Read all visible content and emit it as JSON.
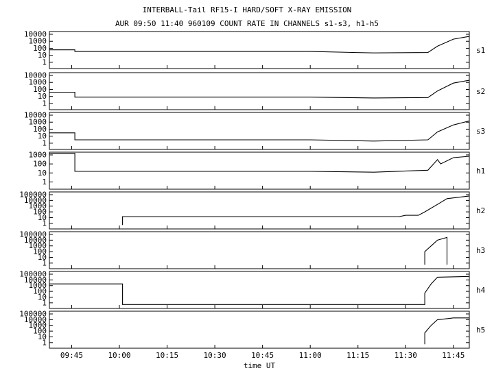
{
  "title_line1": "INTERBALL-Tail RF15-I HARD/SOFT X-RAY EMISSION",
  "title_line2": "AUR 09:50 11:40 960109  COUNT RATE IN CHANNELS s1-s3, h1-h5",
  "xlabel": "time UT",
  "chart_data": {
    "type": "line",
    "y_scale": "log",
    "x_unit": "UT minutes",
    "x_range": [
      "09:38",
      "11:50"
    ],
    "x_ticks": [
      "09:45",
      "10:00",
      "10:15",
      "10:30",
      "10:45",
      "11:00",
      "11:15",
      "11:30",
      "11:45"
    ],
    "panels": [
      {
        "channel": "s1",
        "y_ticks": [
          "10000",
          "1000",
          "100",
          "10",
          "1"
        ],
        "series": [
          {
            "t": "09:38",
            "count_rate": 60
          },
          {
            "t": "09:46",
            "count_rate": 60
          },
          {
            "t": "09:46",
            "count_rate": 35
          },
          {
            "t": "11:00",
            "count_rate": 35
          },
          {
            "t": "11:20",
            "count_rate": 22
          },
          {
            "t": "11:37",
            "count_rate": 25
          },
          {
            "t": "11:40",
            "count_rate": 200
          },
          {
            "t": "11:45",
            "count_rate": 2000
          },
          {
            "t": "11:50",
            "count_rate": 5000
          }
        ]
      },
      {
        "channel": "s2",
        "y_ticks": [
          "10000",
          "1000",
          "100",
          "10",
          "1"
        ],
        "series": [
          {
            "t": "09:38",
            "count_rate": 40
          },
          {
            "t": "09:46",
            "count_rate": 40
          },
          {
            "t": "09:46",
            "count_rate": 8
          },
          {
            "t": "11:00",
            "count_rate": 8
          },
          {
            "t": "11:20",
            "count_rate": 6
          },
          {
            "t": "11:37",
            "count_rate": 7
          },
          {
            "t": "11:40",
            "count_rate": 60
          },
          {
            "t": "11:45",
            "count_rate": 800
          },
          {
            "t": "11:50",
            "count_rate": 2000
          }
        ]
      },
      {
        "channel": "s3",
        "y_ticks": [
          "10000",
          "1000",
          "100",
          "10",
          "1"
        ],
        "series": [
          {
            "t": "09:38",
            "count_rate": 30
          },
          {
            "t": "09:46",
            "count_rate": 30
          },
          {
            "t": "09:46",
            "count_rate": 3
          },
          {
            "t": "11:00",
            "count_rate": 3
          },
          {
            "t": "11:20",
            "count_rate": 2
          },
          {
            "t": "11:37",
            "count_rate": 3
          },
          {
            "t": "11:40",
            "count_rate": 40
          },
          {
            "t": "11:45",
            "count_rate": 400
          },
          {
            "t": "11:50",
            "count_rate": 1500
          }
        ]
      },
      {
        "channel": "h1",
        "y_ticks": [
          "1000",
          "100",
          "10",
          "1"
        ],
        "series": [
          {
            "t": "09:38",
            "count_rate": 1500
          },
          {
            "t": "09:46",
            "count_rate": 1500
          },
          {
            "t": "09:46",
            "count_rate": 15
          },
          {
            "t": "11:00",
            "count_rate": 15
          },
          {
            "t": "11:20",
            "count_rate": 12
          },
          {
            "t": "11:37",
            "count_rate": 20
          },
          {
            "t": "11:40",
            "count_rate": 300
          },
          {
            "t": "11:41",
            "count_rate": 100
          },
          {
            "t": "11:45",
            "count_rate": 500
          },
          {
            "t": "11:50",
            "count_rate": 700
          }
        ]
      },
      {
        "channel": "h2",
        "y_ticks": [
          "100000",
          "10000",
          "1000",
          "100",
          "10",
          "1"
        ],
        "series": [
          {
            "t": "10:01",
            "count_rate": 0.5
          },
          {
            "t": "10:01",
            "count_rate": 15
          },
          {
            "t": "11:28",
            "count_rate": 15
          },
          {
            "t": "11:30",
            "count_rate": 25
          },
          {
            "t": "11:34",
            "count_rate": 25
          },
          {
            "t": "11:36",
            "count_rate": 100
          },
          {
            "t": "11:40",
            "count_rate": 2000
          },
          {
            "t": "11:43",
            "count_rate": 20000
          },
          {
            "t": "11:50",
            "count_rate": 60000
          }
        ]
      },
      {
        "channel": "h3",
        "y_ticks": [
          "100000",
          "10000",
          "1000",
          "100",
          "10",
          "1"
        ],
        "series": [
          {
            "t": "11:36",
            "count_rate": 0.5
          },
          {
            "t": "11:36",
            "count_rate": 100
          },
          {
            "t": "11:38",
            "count_rate": 1000
          },
          {
            "t": "11:40",
            "count_rate": 10000
          },
          {
            "t": "11:43",
            "count_rate": 30000
          },
          {
            "t": "11:43",
            "count_rate": 0.5
          }
        ]
      },
      {
        "channel": "h4",
        "y_ticks": [
          "100000",
          "10000",
          "1000",
          "100",
          "10",
          "1"
        ],
        "series": [
          {
            "t": "09:38",
            "count_rate": 2000
          },
          {
            "t": "10:01",
            "count_rate": 2000
          },
          {
            "t": "10:01",
            "count_rate": 0.5
          },
          {
            "t": "11:36",
            "count_rate": 0.5
          },
          {
            "t": "11:36",
            "count_rate": 50
          },
          {
            "t": "11:38",
            "count_rate": 2000
          },
          {
            "t": "11:40",
            "count_rate": 30000
          },
          {
            "t": "11:50",
            "count_rate": 40000
          }
        ]
      },
      {
        "channel": "h5",
        "y_ticks": [
          "100000",
          "10000",
          "1000",
          "100",
          "10",
          "1"
        ],
        "series": [
          {
            "t": "11:36",
            "count_rate": 0.5
          },
          {
            "t": "11:36",
            "count_rate": 50
          },
          {
            "t": "11:38",
            "count_rate": 1000
          },
          {
            "t": "11:40",
            "count_rate": 10000
          },
          {
            "t": "11:43",
            "count_rate": 15000
          },
          {
            "t": "11:45",
            "count_rate": 20000
          },
          {
            "t": "11:50",
            "count_rate": 20000
          }
        ]
      }
    ]
  }
}
